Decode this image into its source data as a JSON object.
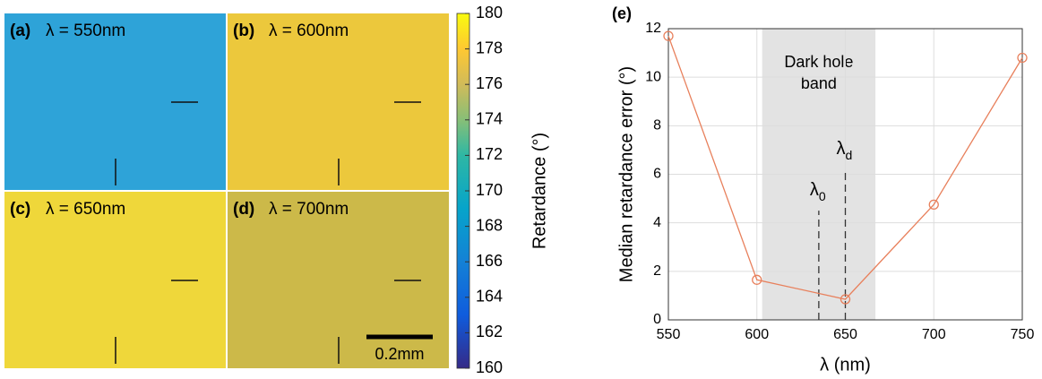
{
  "panels": [
    {
      "label": "(a)",
      "title": "λ = 550nm",
      "color": "#2ea3d8"
    },
    {
      "label": "(b)",
      "title": "λ = 600nm",
      "color": "#ecc83c"
    },
    {
      "label": "(c)",
      "title": "λ = 650nm",
      "color": "#efd73a"
    },
    {
      "label": "(d)",
      "title": "λ = 700nm",
      "color": "#ccb949"
    }
  ],
  "scale_bar": "0.2mm",
  "colorbar": {
    "label": "Retardance (°)",
    "lim": [
      160,
      180
    ],
    "ticks": [
      160,
      162,
      164,
      166,
      168,
      170,
      172,
      174,
      176,
      178,
      180
    ]
  },
  "chart_data": {
    "type": "line",
    "title": "(e)",
    "xlabel": "λ (nm)",
    "ylabel": "Median retardance error (°)",
    "x": [
      550,
      600,
      650,
      700,
      750
    ],
    "series": [
      {
        "color": "#e8805c",
        "values": [
          11.7,
          1.65,
          0.85,
          4.75,
          10.8
        ]
      }
    ],
    "xlim": [
      550,
      750
    ],
    "ylim": [
      0,
      12
    ],
    "xticks": [
      550,
      600,
      650,
      700,
      750
    ],
    "yticks": [
      0,
      2,
      4,
      6,
      8,
      10,
      12
    ],
    "grid": true,
    "band": {
      "range": [
        603,
        667
      ],
      "text": [
        "Dark hole",
        "band"
      ]
    },
    "markers": [
      {
        "symbol": "λ",
        "sub": "0",
        "x": 635,
        "top": 4.5
      },
      {
        "symbol": "λ",
        "sub": "d",
        "x": 650,
        "top": 6.2
      }
    ]
  }
}
